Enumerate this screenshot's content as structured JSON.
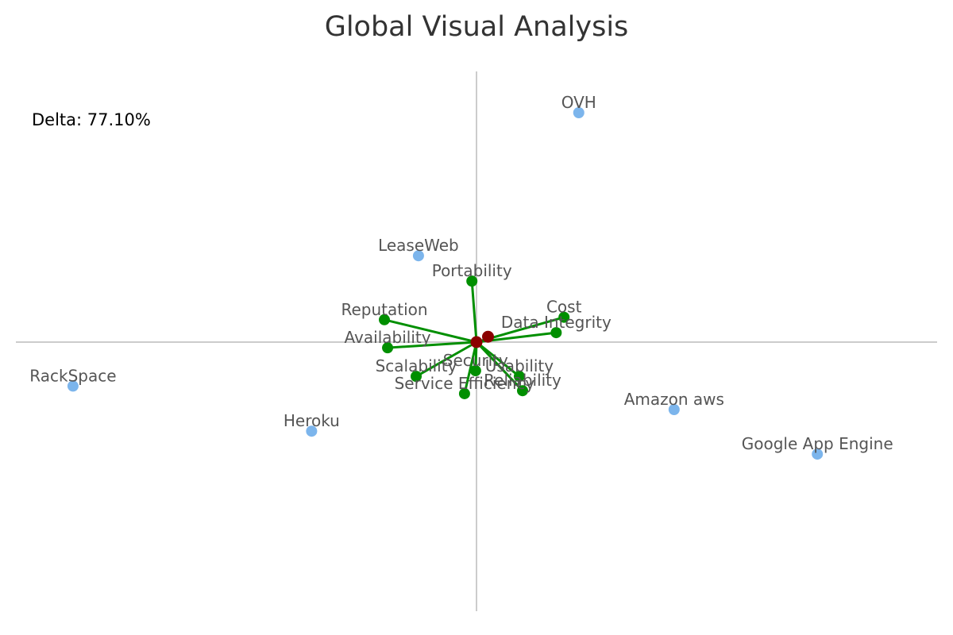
{
  "chart_data": {
    "type": "scatter",
    "title": "Global Visual Analysis",
    "annotation": "Delta: 77.10%",
    "xlim": [
      -1.0,
      1.0
    ],
    "ylim": [
      -1.0,
      1.0
    ],
    "grid": false,
    "axes_crossing_at_origin": true,
    "center": {
      "name": "",
      "x": 0.0,
      "y": 0.0
    },
    "center_secondary": {
      "name": "",
      "x": 0.025,
      "y": 0.02
    },
    "providers": [
      {
        "name": "OVH",
        "x": 0.222,
        "y": 0.85
      },
      {
        "name": "LeaseWeb",
        "x": -0.126,
        "y": 0.32
      },
      {
        "name": "RackSpace",
        "x": -0.876,
        "y": -0.163
      },
      {
        "name": "Heroku",
        "x": -0.358,
        "y": -0.33
      },
      {
        "name": "Amazon aws",
        "x": 0.429,
        "y": -0.25
      },
      {
        "name": "Google App Engine",
        "x": 0.74,
        "y": -0.415
      }
    ],
    "criteria": [
      {
        "name": "Portability",
        "x": -0.01,
        "y": 0.226
      },
      {
        "name": "Reputation",
        "x": -0.2,
        "y": 0.083
      },
      {
        "name": "Availability",
        "x": -0.193,
        "y": -0.021
      },
      {
        "name": "Cost",
        "x": 0.19,
        "y": 0.092
      },
      {
        "name": "Data Integrity",
        "x": 0.173,
        "y": 0.035
      },
      {
        "name": "Security",
        "x": -0.002,
        "y": -0.106
      },
      {
        "name": "Scalability",
        "x": -0.131,
        "y": -0.127
      },
      {
        "name": "Service Efficiency",
        "x": -0.026,
        "y": -0.191
      },
      {
        "name": "Usability",
        "x": 0.093,
        "y": -0.127
      },
      {
        "name": "Reliability",
        "x": 0.1,
        "y": -0.18
      }
    ],
    "colors": {
      "provider": "#7cb5ec",
      "criterion": "#008f00",
      "center": "#8b0000",
      "axis": "#bbbbbb",
      "label": "#555555"
    }
  }
}
